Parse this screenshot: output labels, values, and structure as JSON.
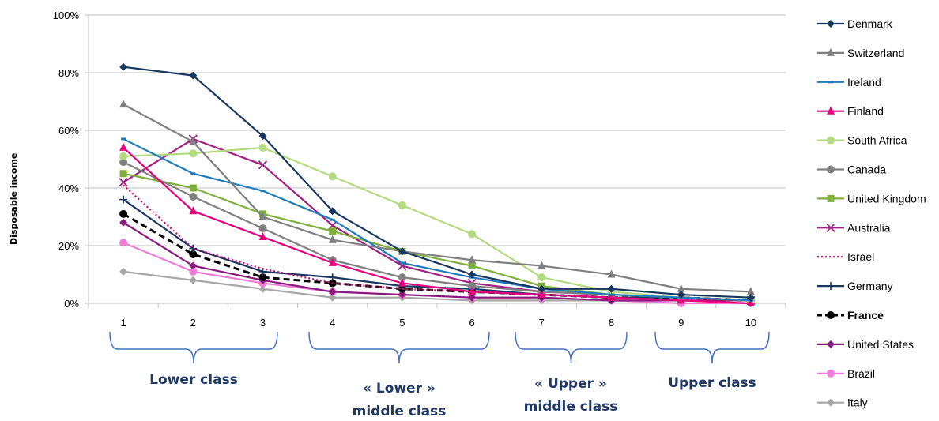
{
  "chart_data": {
    "type": "line",
    "ylabel": "Disposable income",
    "xlabel": "",
    "ylim": [
      0,
      100
    ],
    "y_ticks": [
      "0%",
      "20%",
      "40%",
      "60%",
      "80%",
      "100%"
    ],
    "categories": [
      "1",
      "2",
      "3",
      "4",
      "5",
      "6",
      "7",
      "8",
      "9",
      "10"
    ],
    "grid": "horizontal",
    "legend_position": "right",
    "series": [
      {
        "name": "Denmark",
        "color": "#17375E",
        "marker": "diamond",
        "dash": "",
        "values": [
          82,
          79,
          58,
          32,
          18,
          10,
          5,
          5,
          3,
          2
        ]
      },
      {
        "name": "Switzerland",
        "color": "#7F7F7F",
        "marker": "triangle",
        "dash": "",
        "values": [
          69,
          56,
          30,
          22,
          18,
          15,
          13,
          10,
          5,
          4
        ]
      },
      {
        "name": "Ireland",
        "color": "#1F7BBF",
        "marker": "dash",
        "dash": "",
        "values": [
          57,
          45,
          39,
          29,
          14,
          9,
          5,
          3,
          2,
          1
        ]
      },
      {
        "name": "Finland",
        "color": "#E6007E",
        "marker": "triangle",
        "dash": "",
        "values": [
          54,
          32,
          23,
          14,
          7,
          4,
          3,
          2,
          1,
          0
        ]
      },
      {
        "name": "South Africa",
        "color": "#B3DA7E",
        "marker": "circle",
        "dash": "",
        "values": [
          51,
          52,
          54,
          44,
          34,
          24,
          9,
          4,
          2,
          1
        ]
      },
      {
        "name": "Canada",
        "color": "#808080",
        "marker": "circle",
        "dash": "",
        "values": [
          49,
          37,
          26,
          15,
          9,
          6,
          4,
          3,
          2,
          1
        ]
      },
      {
        "name": "United Kingdom",
        "color": "#7EB03B",
        "marker": "square",
        "dash": "",
        "values": [
          45,
          40,
          31,
          25,
          18,
          13,
          6,
          3,
          2,
          1
        ]
      },
      {
        "name": "Australia",
        "color": "#A2207F",
        "marker": "x",
        "dash": "",
        "values": [
          42,
          57,
          48,
          27,
          13,
          7,
          4,
          3,
          2,
          1
        ]
      },
      {
        "name": "Israel",
        "color": "#D4006F",
        "marker": "none",
        "dash": "2,3",
        "values": [
          41,
          19,
          12,
          7,
          5,
          4,
          3,
          2,
          1,
          1
        ]
      },
      {
        "name": "Germany",
        "color": "#17375E",
        "marker": "plus",
        "dash": "",
        "values": [
          36,
          19,
          11,
          9,
          6,
          5,
          3,
          2,
          2,
          1
        ]
      },
      {
        "name": "France",
        "color": "#000000",
        "marker": "circle",
        "dash": "8,5",
        "bold": true,
        "values": [
          31,
          17,
          9,
          7,
          5,
          4,
          3,
          2,
          2,
          1
        ]
      },
      {
        "name": "United States",
        "color": "#8B1A7E",
        "marker": "diamond",
        "dash": "",
        "values": [
          28,
          13,
          8,
          4,
          3,
          2,
          2,
          1,
          1,
          1
        ]
      },
      {
        "name": "Brazil",
        "color": "#F07CD7",
        "marker": "circle",
        "dash": "",
        "values": [
          21,
          11,
          7,
          4,
          3,
          2,
          2,
          1,
          0,
          0
        ]
      },
      {
        "name": "Italy",
        "color": "#A6A6A6",
        "marker": "diamond",
        "dash": "",
        "values": [
          11,
          8,
          5,
          2,
          2,
          1,
          1,
          1,
          1,
          1
        ]
      }
    ],
    "annotations": [
      {
        "id": "lower-class",
        "lines": [
          "Lower class"
        ]
      },
      {
        "id": "lower-middle-class",
        "lines": [
          "« Lower »",
          "middle class"
        ]
      },
      {
        "id": "upper-middle-class",
        "lines": [
          "« Upper »",
          "middle class"
        ]
      },
      {
        "id": "upper-class",
        "lines": [
          "Upper class"
        ]
      }
    ]
  }
}
